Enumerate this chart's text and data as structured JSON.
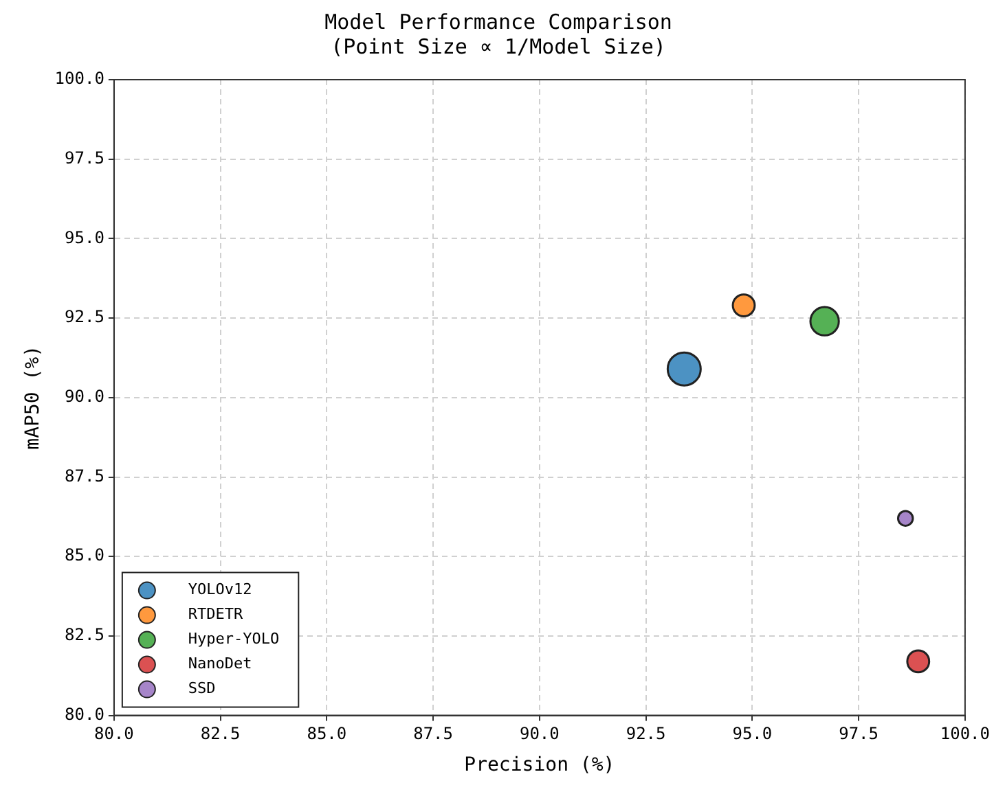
{
  "chart_data": {
    "type": "bubble",
    "title": "Model Performance Comparison",
    "subtitle": "(Point Size ∝ 1/Model Size)",
    "xlabel": "Precision (%)",
    "ylabel": "mAP50 (%)",
    "xlim": [
      80,
      100
    ],
    "xticks": [
      {
        "value": 80,
        "label": "80.0"
      },
      {
        "value": 82.5,
        "label": "82.5"
      },
      {
        "value": 85,
        "label": "85.0"
      },
      {
        "value": 87.5,
        "label": "87.5"
      },
      {
        "value": 90,
        "label": "90.0"
      },
      {
        "value": 92.5,
        "label": "92.5"
      },
      {
        "value": 95,
        "label": "95.0"
      },
      {
        "value": 97.5,
        "label": "97.5"
      },
      {
        "value": 100,
        "label": "100.0"
      }
    ],
    "ylim": [
      80,
      100
    ],
    "yticks": [
      {
        "value": 80,
        "label": "80.0"
      },
      {
        "value": 82.5,
        "label": "82.5"
      },
      {
        "value": 85,
        "label": "85.0"
      },
      {
        "value": 87.5,
        "label": "87.5"
      },
      {
        "value": 90,
        "label": "90.0"
      },
      {
        "value": 92.5,
        "label": "92.5"
      },
      {
        "value": 95,
        "label": "95.0"
      },
      {
        "value": 97.5,
        "label": "97.5"
      },
      {
        "value": 100,
        "label": "100.0"
      }
    ],
    "grid": true,
    "legend": "bottom left",
    "marker": "circle",
    "series": [
      {
        "name": "YOLOv12",
        "color": "#4c92c3",
        "x": [
          93.4
        ],
        "values": [
          90.9
        ],
        "sizes": [
          1
        ]
      },
      {
        "name": "RTDETR",
        "color": "#ff993e",
        "x": [
          94.8
        ],
        "values": [
          92.9
        ],
        "sizes": [
          0.44
        ]
      },
      {
        "name": "Hyper-YOLO",
        "color": "#55b155",
        "x": [
          96.7
        ],
        "values": [
          92.4
        ],
        "sizes": [
          0.74
        ]
      },
      {
        "name": "NanoDet",
        "color": "#db5152",
        "x": [
          98.9
        ],
        "values": [
          81.7
        ],
        "sizes": [
          0.44
        ]
      },
      {
        "name": "SSD",
        "color": "#a685c9",
        "x": [
          98.6
        ],
        "values": [
          86.2
        ],
        "sizes": [
          0.2
        ]
      }
    ]
  }
}
